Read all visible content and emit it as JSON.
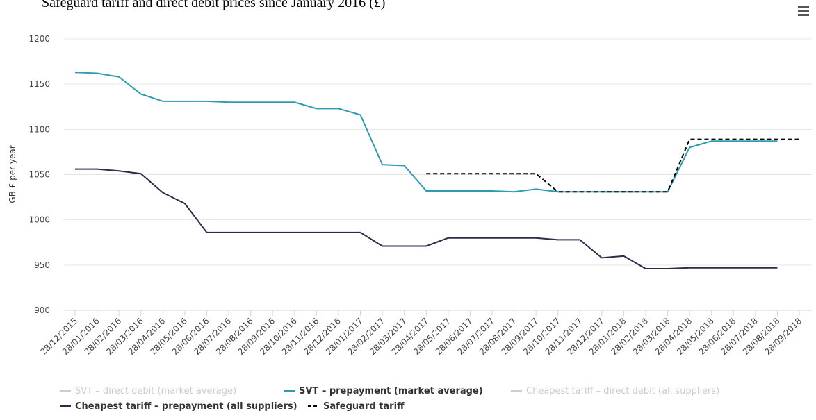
{
  "chart_data": {
    "type": "line",
    "title": "Safeguard tariff and direct debit prices since January 2016 (£)",
    "y_label": "GB £ per year",
    "categories": [
      "28/12/2015",
      "28/01/2016",
      "28/02/2016",
      "28/03/2016",
      "28/04/2016",
      "28/05/2016",
      "28/06/2016",
      "28/07/2016",
      "28/08/2016",
      "28/09/2016",
      "28/10/2016",
      "28/11/2016",
      "28/12/2016",
      "28/01/2017",
      "28/02/2017",
      "28/03/2017",
      "28/04/2017",
      "28/05/2017",
      "28/06/2017",
      "28/07/2017",
      "28/08/2017",
      "28/09/2017",
      "28/10/2017",
      "28/11/2017",
      "28/12/2017",
      "28/01/2018",
      "28/02/2018",
      "28/03/2018",
      "28/04/2018",
      "28/05/2018",
      "28/06/2018",
      "28/07/2018",
      "28/08/2018",
      "28/09/2018"
    ],
    "series": [
      {
        "name": "SVT – direct debit (market average)",
        "color": "#cccccc",
        "visible": false
      },
      {
        "name": "SVT – prepayment (market average)",
        "color": "#2e9cb0",
        "visible": true,
        "values": [
          1163,
          1162,
          1158,
          1139,
          1131,
          1131,
          1131,
          1130,
          1130,
          1130,
          1130,
          1123,
          1123,
          1116,
          1061,
          1060,
          1032,
          1032,
          1032,
          1032,
          1031,
          1034,
          1031,
          1031,
          1031,
          1031,
          1031,
          1031,
          1080,
          1087,
          1087,
          1087,
          1087,
          null
        ]
      },
      {
        "name": "Cheapest tariff – direct debit (all suppliers)",
        "color": "#cccccc",
        "visible": false
      },
      {
        "name": "Cheapest tariff – prepayment (all suppliers)",
        "color": "#2d2a4a",
        "visible": true,
        "values": [
          1056,
          1056,
          1054,
          1051,
          1030,
          1018,
          986,
          986,
          986,
          986,
          986,
          986,
          986,
          986,
          971,
          971,
          971,
          980,
          980,
          980,
          980,
          980,
          978,
          978,
          958,
          960,
          946,
          946,
          947,
          947,
          947,
          947,
          947,
          null
        ]
      },
      {
        "name": "Safeguard tariff",
        "color": "#000000",
        "visible": true,
        "dashed": true,
        "values": [
          null,
          null,
          null,
          null,
          null,
          null,
          null,
          null,
          null,
          null,
          null,
          null,
          null,
          null,
          null,
          null,
          1051,
          1051,
          1051,
          1051,
          1051,
          1051,
          1031,
          1031,
          1031,
          1031,
          1031,
          1031,
          1089,
          1089,
          1089,
          1089,
          1089,
          1089
        ]
      }
    ],
    "ylim": [
      900,
      1200
    ],
    "yticks": [
      900,
      950,
      1000,
      1050,
      1100,
      1150,
      1200
    ],
    "grid": true
  }
}
